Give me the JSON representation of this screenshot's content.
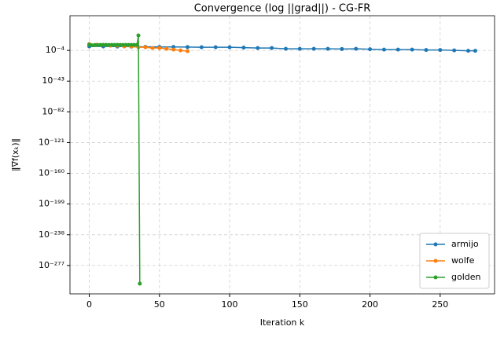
{
  "chart_data": {
    "type": "line",
    "title": "Convergence (log ||grad||) - CG-FR",
    "x_label": "Iteration k",
    "y_label": "‖∇f(xₖ)‖",
    "log_y": true,
    "grid": true,
    "legend": "lower right",
    "xlim": [
      -13.75,
      288.75
    ],
    "xticks": [
      0,
      50,
      100,
      150,
      200,
      250
    ],
    "ylim": [
      1e-313,
      1e+40
    ],
    "yticks": [
      {
        "value": 0.0001,
        "label": "10⁻⁴"
      },
      {
        "value": 1e-43,
        "label": "10⁻⁴³"
      },
      {
        "value": 1e-82,
        "label": "10⁻⁸²"
      },
      {
        "value": 1e-121,
        "label": "10⁻¹²¹"
      },
      {
        "value": 1e-160,
        "label": "10⁻¹⁶⁰"
      },
      {
        "value": 1e-199,
        "label": "10⁻¹⁹⁹"
      },
      {
        "value": 1e-238,
        "label": "10⁻²³⁸"
      },
      {
        "value": 1e-277,
        "label": "10⁻²⁷⁷"
      }
    ],
    "series": [
      {
        "name": "armijo",
        "color": "#1f77b4",
        "x": [
          0,
          10,
          20,
          30,
          40,
          50,
          60,
          70,
          80,
          90,
          100,
          110,
          120,
          130,
          140,
          150,
          160,
          170,
          180,
          190,
          200,
          210,
          220,
          230,
          240,
          250,
          260,
          270,
          275
        ],
        "values": [
          10,
          10,
          8,
          5,
          3,
          2,
          2,
          1.5,
          1,
          1,
          1,
          0.3,
          0.1,
          0.1,
          0.01,
          0.01,
          0.01,
          0.01,
          0.005,
          0.01,
          0.003,
          0.001,
          0.001,
          0.001,
          0.0003,
          0.0003,
          0.0001,
          3e-05,
          3e-05
        ]
      },
      {
        "name": "wolfe",
        "color": "#ff7f0e",
        "x": [
          0,
          5,
          10,
          15,
          20,
          25,
          30,
          35,
          40,
          45,
          50,
          55,
          60,
          65,
          70
        ],
        "values": [
          10000,
          1000,
          1000,
          100,
          100,
          10,
          10,
          1,
          1,
          0.1,
          0.1,
          0.01,
          0.001,
          0.0001,
          1e-05
        ]
      },
      {
        "name": "golden",
        "color": "#2ca02c",
        "x": [
          0,
          2,
          4,
          6,
          8,
          10,
          12,
          14,
          16,
          18,
          20,
          22,
          24,
          26,
          28,
          30,
          32,
          34,
          35,
          36
        ],
        "values": [
          2000,
          300,
          500,
          800,
          1000,
          1000,
          1000,
          1000,
          1000,
          1000,
          1000,
          1000,
          1000,
          1000,
          1000,
          1000,
          1000,
          1000,
          1000000000000000.0,
          1e-300
        ]
      }
    ]
  }
}
